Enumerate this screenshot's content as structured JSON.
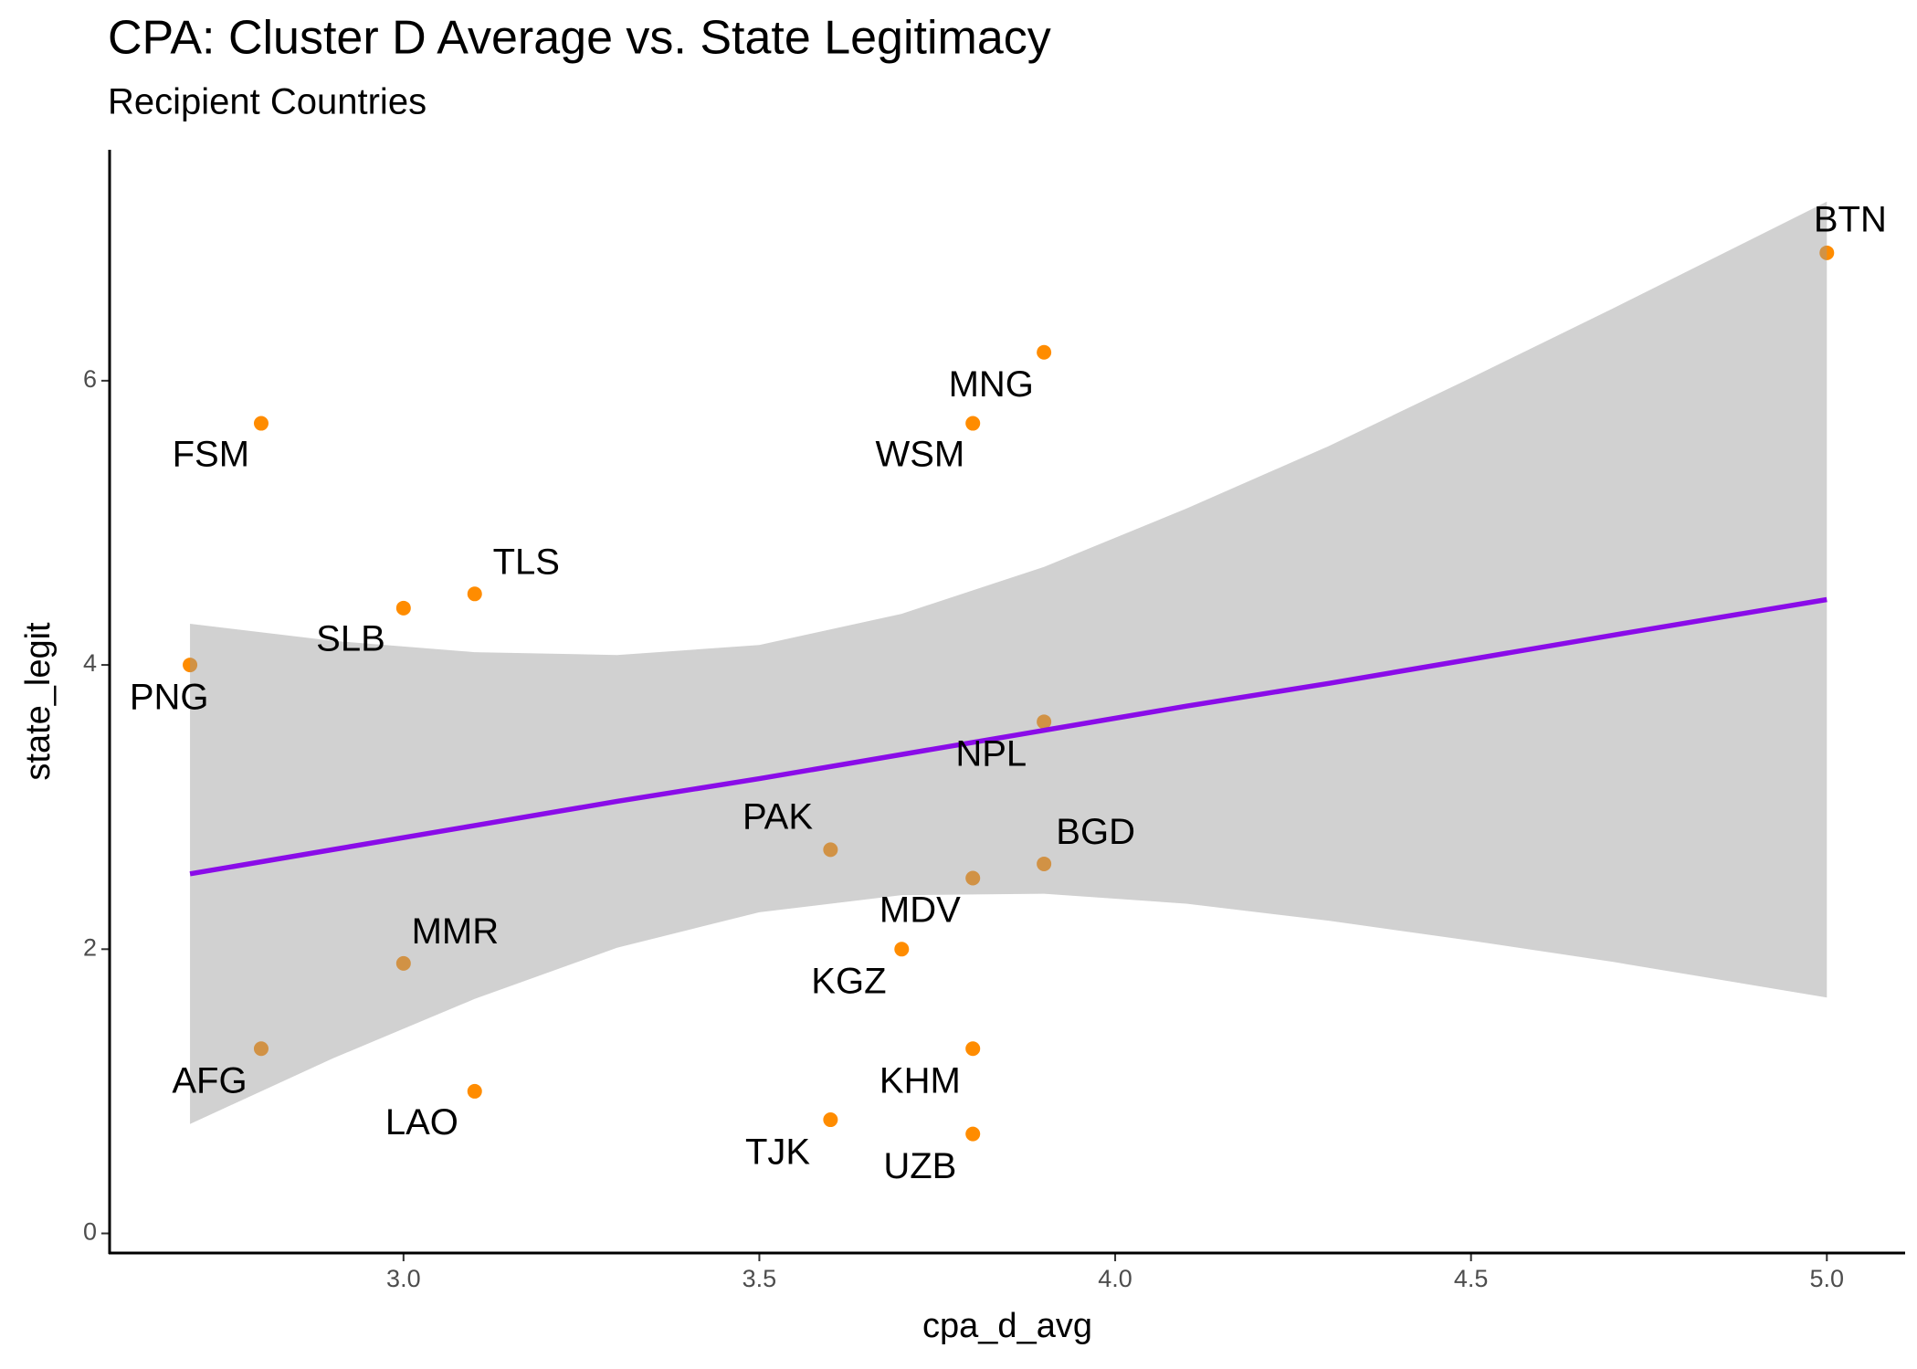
{
  "chart_data": {
    "type": "scatter",
    "title": "CPA: Cluster D Average vs. State Legitimacy",
    "subtitle": "Recipient Countries",
    "x_label": "cpa_d_avg",
    "y_label": "state_legit",
    "labels": [
      "FSM",
      "PNG",
      "SLB",
      "TLS",
      "MMR",
      "AFG",
      "LAO",
      "PAK",
      "TJK",
      "KGZ",
      "MDV",
      "KHM",
      "UZB",
      "WSM",
      "MNG",
      "NPL",
      "BGD",
      "BTN"
    ],
    "x": [
      2.8,
      2.7,
      3.0,
      3.1,
      3.0,
      2.8,
      3.1,
      3.6,
      3.6,
      3.7,
      3.8,
      3.8,
      3.8,
      3.8,
      3.9,
      3.9,
      3.9,
      5.0
    ],
    "y": [
      5.7,
      4.0,
      4.4,
      4.5,
      1.9,
      1.3,
      1.0,
      2.7,
      0.8,
      2.0,
      2.5,
      1.3,
      0.7,
      5.7,
      6.2,
      3.6,
      2.6,
      6.9
    ],
    "color": "#ff8c00",
    "fit": {
      "color": "#8a0ce8",
      "band_color": "#999999",
      "x": [
        2.7,
        2.9,
        3.1,
        3.3,
        3.5,
        3.7,
        3.9,
        4.1,
        4.3,
        4.5,
        4.7,
        5.0
      ],
      "y": [
        2.53,
        2.7,
        2.87,
        3.04,
        3.2,
        3.37,
        3.54,
        3.71,
        3.87,
        4.04,
        4.21,
        4.46
      ],
      "lower": [
        0.77,
        1.23,
        1.65,
        2.01,
        2.26,
        2.38,
        2.39,
        2.32,
        2.2,
        2.06,
        1.91,
        1.66
      ],
      "upper": [
        4.29,
        4.17,
        4.09,
        4.07,
        4.14,
        4.36,
        4.69,
        5.1,
        5.54,
        6.02,
        6.51,
        7.26
      ]
    },
    "xlim": [
      2.587,
      5.11
    ],
    "ylim": [
      -0.138,
      7.625
    ],
    "xticks": [
      {
        "value": 3,
        "label": "3.0"
      },
      3.5,
      {
        "value": 4,
        "label": "4.0"
      },
      4.5,
      {
        "value": 5,
        "label": "5.0"
      }
    ],
    "yticks": [
      0,
      2,
      4,
      6
    ]
  }
}
